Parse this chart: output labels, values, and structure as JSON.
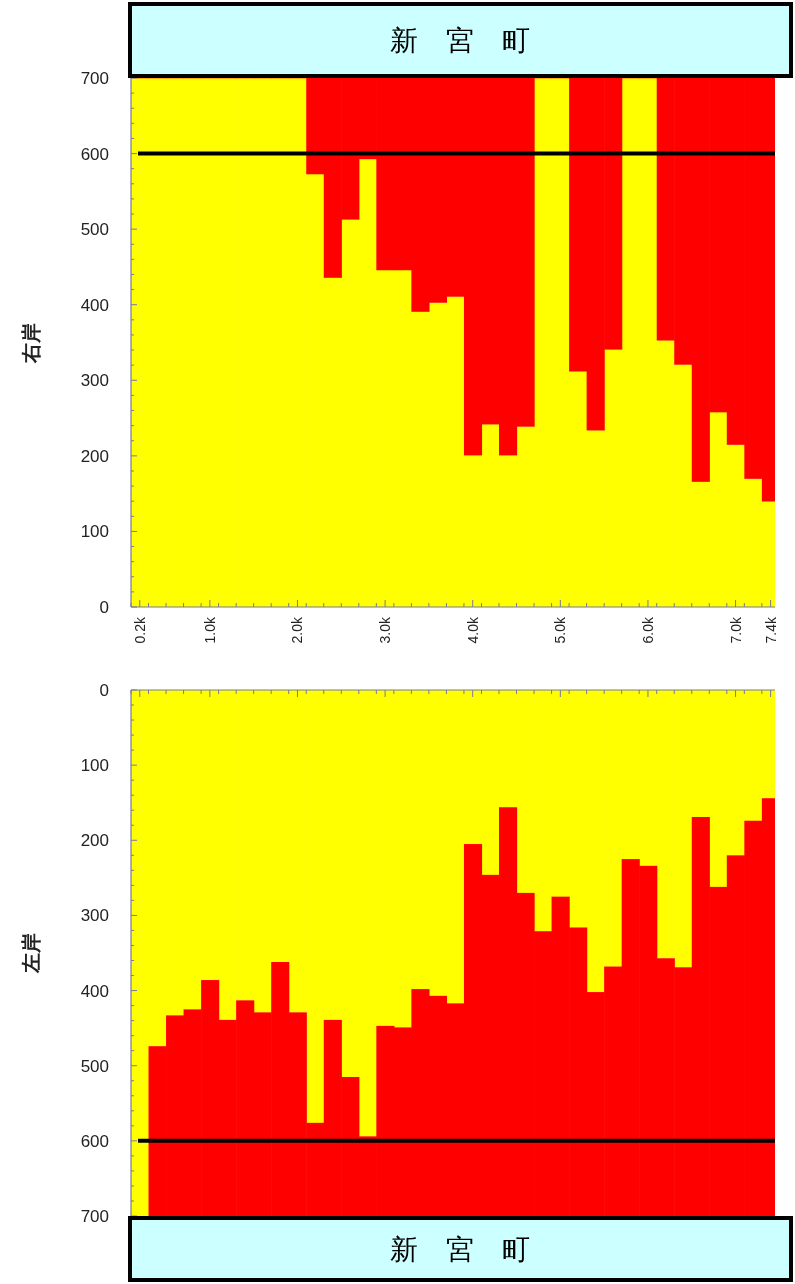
{
  "chart_data": [
    {
      "type": "bar",
      "title": "新　宮　町",
      "ylabel": "右岸",
      "stacked": true,
      "x": [
        0.2,
        0.4,
        0.6,
        0.8,
        1.0,
        1.2,
        1.4,
        1.6,
        1.8,
        2.0,
        2.2,
        2.4,
        2.6,
        2.8,
        3.0,
        3.2,
        3.4,
        3.6,
        3.8,
        4.0,
        4.2,
        4.4,
        4.6,
        4.8,
        5.0,
        5.2,
        5.4,
        5.6,
        5.8,
        6.0,
        6.2,
        6.4,
        6.6,
        6.8,
        7.0,
        7.2,
        7.4
      ],
      "series": [
        {
          "color": "#ffff00",
          "values": [
            700,
            700,
            700,
            700,
            700,
            700,
            700,
            700,
            700,
            700,
            573,
            436,
            513,
            593,
            446,
            446,
            391,
            403,
            411,
            201,
            242,
            201,
            239,
            700,
            700,
            312,
            234,
            341,
            700,
            700,
            353,
            321,
            166,
            258,
            215,
            170,
            140
          ]
        },
        {
          "color": "#ff0000",
          "values": [
            0,
            0,
            0,
            0,
            0,
            0,
            0,
            0,
            0,
            0,
            127,
            264,
            187,
            107,
            254,
            254,
            309,
            297,
            289,
            499,
            458,
            499,
            461,
            0,
            0,
            388,
            466,
            359,
            0,
            0,
            347,
            379,
            534,
            442,
            485,
            530,
            560
          ]
        }
      ],
      "xlim": [
        0.1,
        7.45
      ],
      "xticks": [
        {
          "value": 0.2,
          "label": "0.2k"
        },
        {
          "value": 1.0,
          "label": "1.0k"
        },
        {
          "value": 2.0,
          "label": "2.0k"
        },
        {
          "value": 3.0,
          "label": "3.0k"
        },
        {
          "value": 4.0,
          "label": "4.0k"
        },
        {
          "value": 5.0,
          "label": "5.0k"
        },
        {
          "value": 6.0,
          "label": "6.0k"
        },
        {
          "value": 7.0,
          "label": "7.0k"
        },
        {
          "value": 7.4,
          "label": "7.4k"
        }
      ],
      "ylim": [
        0,
        700
      ],
      "yticks": [
        0,
        100,
        200,
        300,
        400,
        500,
        600,
        700
      ],
      "ref_lines": [
        {
          "axis": "y",
          "value": 600,
          "color": "#000000"
        }
      ]
    },
    {
      "type": "bar",
      "title": "新　宮　町",
      "ylabel": "左岸",
      "stacked": true,
      "tick_labels": "y",
      "x": [
        0.2,
        0.4,
        0.6,
        0.8,
        1.0,
        1.2,
        1.4,
        1.6,
        1.8,
        2.0,
        2.2,
        2.4,
        2.6,
        2.8,
        3.0,
        3.2,
        3.4,
        3.6,
        3.8,
        4.0,
        4.2,
        4.4,
        4.6,
        4.8,
        5.0,
        5.2,
        5.4,
        5.6,
        5.8,
        6.0,
        6.2,
        6.4,
        6.6,
        6.8,
        7.0,
        7.2,
        7.4
      ],
      "series": [
        {
          "color": "#ffff00",
          "values": [
            700,
            474,
            433,
            425,
            386,
            439,
            413,
            429,
            362,
            429,
            576,
            439,
            515,
            594,
            447,
            449,
            398,
            407,
            417,
            205,
            246,
            156,
            270,
            321,
            275,
            316,
            402,
            368,
            225,
            234,
            357,
            369,
            169,
            262,
            220,
            174,
            144
          ]
        },
        {
          "color": "#ff0000",
          "values": [
            0,
            226,
            267,
            275,
            314,
            261,
            287,
            271,
            338,
            271,
            124,
            261,
            185,
            106,
            253,
            251,
            302,
            293,
            283,
            495,
            454,
            544,
            430,
            379,
            425,
            384,
            298,
            332,
            475,
            466,
            343,
            331,
            531,
            438,
            480,
            526,
            556
          ]
        }
      ],
      "xlim": [
        0.1,
        7.45
      ],
      "xticks": [
        0.2,
        1.0,
        2.0,
        3.0,
        4.0,
        5.0,
        6.0,
        7.0,
        7.4
      ],
      "ylim": [
        700,
        0
      ],
      "yticks": [
        0,
        100,
        200,
        300,
        400,
        500,
        600,
        700
      ],
      "ref_lines": [
        {
          "axis": "y",
          "value": 600,
          "color": "#000000"
        }
      ]
    }
  ]
}
